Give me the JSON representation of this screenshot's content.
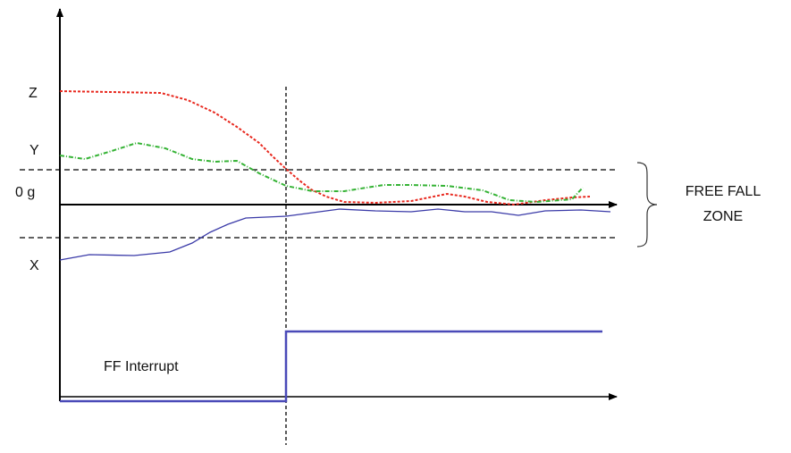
{
  "labels": {
    "z": "Z",
    "y": "Y",
    "zero_g": "0 g",
    "x": "X",
    "zone_line1": "FREE FALL",
    "zone_line2": "ZONE",
    "interrupt": "FF Interrupt"
  },
  "colors": {
    "axis": "#000000",
    "z_trace": "#e8281e",
    "y_trace": "#35b335",
    "x_trace": "#3a3aa8",
    "interrupt": "#4a4ab8"
  },
  "icons": {
    "zone_brace": "right-curly-brace"
  }
}
